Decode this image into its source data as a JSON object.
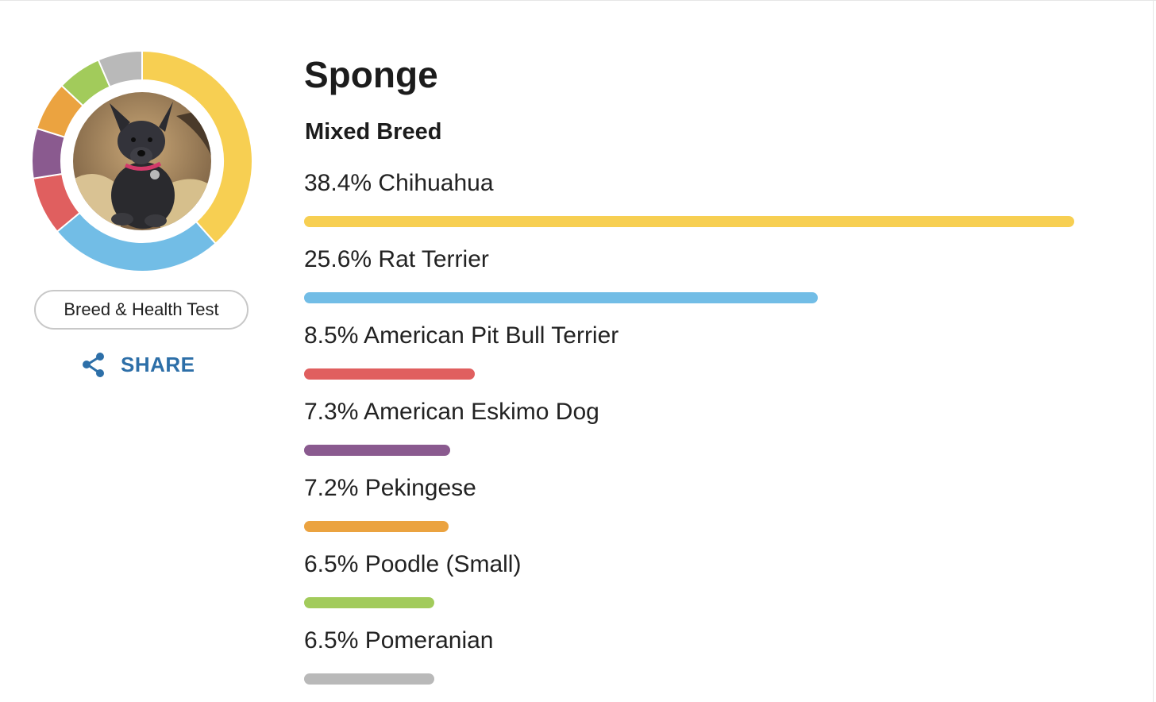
{
  "dog": {
    "name": "Sponge",
    "breed_type": "Mixed Breed"
  },
  "actions": {
    "test_button_label": "Breed & Health Test",
    "share_label": "SHARE"
  },
  "colors": {
    "share": "#2d6fa8",
    "donut_gap": "#ffffff"
  },
  "breeds": [
    {
      "percent": 38.4,
      "label": "38.4% Chihuahua",
      "color": "#f7cf52"
    },
    {
      "percent": 25.6,
      "label": "25.6% Rat Terrier",
      "color": "#72bde6"
    },
    {
      "percent": 8.5,
      "label": "8.5% American Pit Bull Terrier",
      "color": "#e05f5f"
    },
    {
      "percent": 7.3,
      "label": "7.3% American Eskimo Dog",
      "color": "#8a5a8f"
    },
    {
      "percent": 7.2,
      "label": "7.2% Pekingese",
      "color": "#eba340"
    },
    {
      "percent": 6.5,
      "label": "6.5% Poodle (Small)",
      "color": "#a2cb5b"
    },
    {
      "percent": 6.5,
      "label": "6.5% Pomeranian",
      "color": "#b9b9b9"
    }
  ]
}
